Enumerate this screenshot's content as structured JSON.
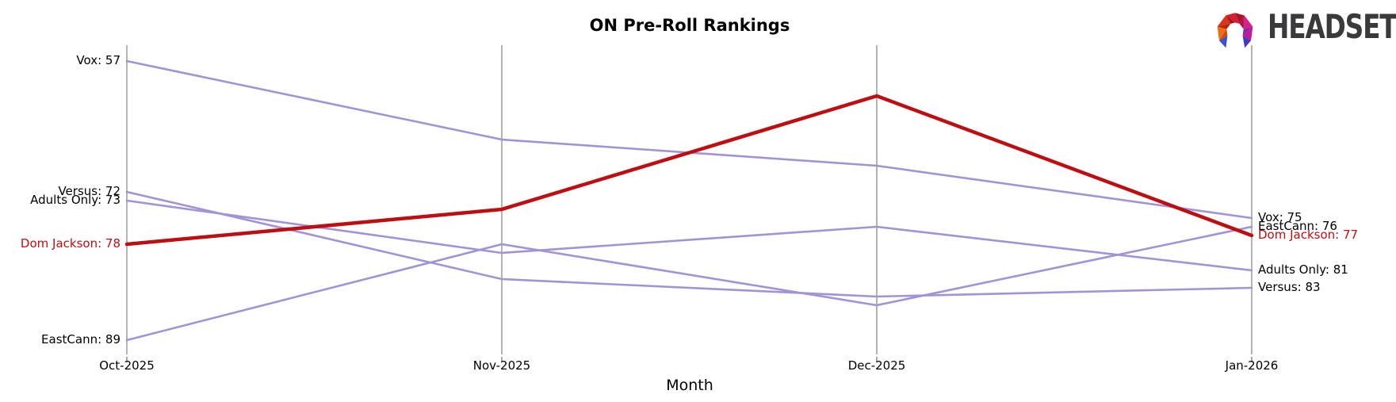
{
  "header": {
    "title": "ON Pre-Roll Rankings"
  },
  "logo": {
    "text": "HEADSET",
    "text_color": "#3a3a3c",
    "mark_colors": [
      "#ee6d12",
      "#d2480e",
      "#dd3418",
      "#b52413",
      "#d81f2b",
      "#9b1324",
      "#a81327",
      "#d01f36",
      "#dc1f86",
      "#a81650",
      "#c4179a",
      "#7e2da2",
      "#3c52c8",
      "#4739bf"
    ]
  },
  "chart_data": {
    "type": "line",
    "subtype": "rank-bump-chart",
    "title": "ON Pre-Roll Rankings",
    "xlabel": "Month",
    "categories": [
      "Oct-2025",
      "Nov-2025",
      "Dec-2025",
      "Jan-2026"
    ],
    "y_axis": {
      "inverted": true,
      "meaning": "ranking (lower number = higher on chart)",
      "visible_value_range": [
        57,
        89
      ],
      "gridlines": "vertical only, one per month",
      "legend_position": "none - direct labels at both line ends"
    },
    "label_format": "{name}: {value}",
    "series": [
      {
        "name": "Vox",
        "values": [
          57,
          66,
          69,
          75
        ],
        "color": "#a294d4",
        "emphasis": false
      },
      {
        "name": "Versus",
        "values": [
          72,
          82,
          84,
          83
        ],
        "color": "#a294d4",
        "emphasis": false
      },
      {
        "name": "Adults Only",
        "values": [
          73,
          79,
          76,
          81
        ],
        "color": "#a294d4",
        "emphasis": false
      },
      {
        "name": "Dom Jackson",
        "values": [
          78,
          74,
          61,
          77
        ],
        "color": "#bf0e11",
        "emphasis": true
      },
      {
        "name": "EastCann",
        "values": [
          89,
          78,
          85,
          76
        ],
        "color": "#a294d4",
        "emphasis": false
      }
    ],
    "style": {
      "gridline_color": "#b4b4b4",
      "tick_color": "#8a8a8a",
      "text_color": "#000000",
      "background": "#ffffff"
    }
  }
}
